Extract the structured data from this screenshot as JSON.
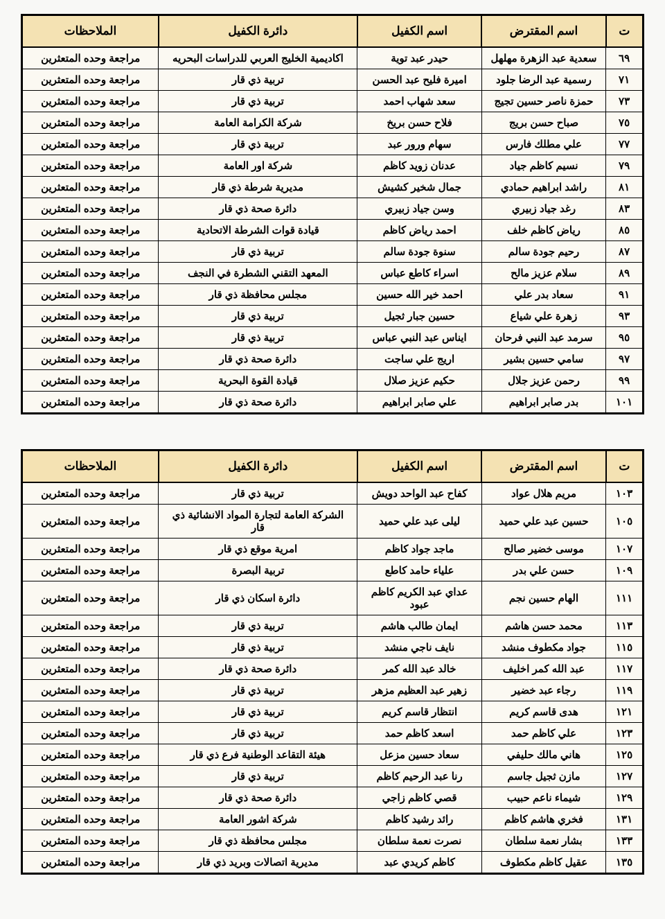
{
  "headers": {
    "seq": "ت",
    "borrower": "اسم المقترض",
    "guarantor": "اسم الكفيل",
    "department": "دائرة الكفيل",
    "notes": "الملاحظات"
  },
  "common_note": "مراجعة وحده المتعثرين",
  "table1": [
    {
      "seq": "٦٩",
      "borrower": "سعدية عبد الزهرة مهلهل",
      "guarantor": "حيدر عبد توية",
      "dept": "اكاديمية الخليج العربي للدراسات البحريه"
    },
    {
      "seq": "٧١",
      "borrower": "رسمية عبد الرضا جلود",
      "guarantor": "اميرة فليح عبد الحسن",
      "dept": "تربية ذي قار"
    },
    {
      "seq": "٧٣",
      "borrower": "حمزة ناصر حسين تجيج",
      "guarantor": "سعد شهاب احمد",
      "dept": "تربية ذي قار"
    },
    {
      "seq": "٧٥",
      "borrower": "صباح حسن بريج",
      "guarantor": "فلاح حسن بريخ",
      "dept": "شركة الكرامة العامة"
    },
    {
      "seq": "٧٧",
      "borrower": "علي مطلك فارس",
      "guarantor": "سهام ورور عبد",
      "dept": "تربية ذي قار"
    },
    {
      "seq": "٧٩",
      "borrower": "نسيم كاظم جياد",
      "guarantor": "عدنان زويد كاظم",
      "dept": "شركة اور العامة"
    },
    {
      "seq": "٨١",
      "borrower": "راشد ابراهيم حمادي",
      "guarantor": "جمال شخير كشيش",
      "dept": "مديرية شرطة ذي قار"
    },
    {
      "seq": "٨٣",
      "borrower": "رغد جياد زبيري",
      "guarantor": "وسن جياد زبيري",
      "dept": "دائرة صحة ذي قار"
    },
    {
      "seq": "٨٥",
      "borrower": "رياض كاظم خلف",
      "guarantor": "احمد رياض كاظم",
      "dept": "قيادة قوات الشرطة الاتحادية"
    },
    {
      "seq": "٨٧",
      "borrower": "رحيم جودة سالم",
      "guarantor": "سنوة جودة سالم",
      "dept": "تربية ذي قار"
    },
    {
      "seq": "٨٩",
      "borrower": "سلام عزيز مالح",
      "guarantor": "اسراء كاطع عباس",
      "dept": "المعهد التقني الشطرة في النجف"
    },
    {
      "seq": "٩١",
      "borrower": "سعاد بدر علي",
      "guarantor": "احمد خير الله حسين",
      "dept": "مجلس محافظة ذي قار"
    },
    {
      "seq": "٩٣",
      "borrower": "زهرة علي شياع",
      "guarantor": "حسين جبار ثجيل",
      "dept": "تربية ذي قار"
    },
    {
      "seq": "٩٥",
      "borrower": "سرمد عبد النبي فرحان",
      "guarantor": "ايناس عبد النبي عباس",
      "dept": "تربية ذي قار"
    },
    {
      "seq": "٩٧",
      "borrower": "سامي حسين بشير",
      "guarantor": "اريج علي ساجت",
      "dept": "دائرة صحة ذي قار"
    },
    {
      "seq": "٩٩",
      "borrower": "رحمن عزيز جلال",
      "guarantor": "حكيم عزيز صلال",
      "dept": "قيادة القوة البحرية"
    },
    {
      "seq": "١٠١",
      "borrower": "بدر صابر ابراهيم",
      "guarantor": "علي صابر ابراهيم",
      "dept": "دائرة صحة ذي قار"
    }
  ],
  "table2": [
    {
      "seq": "١٠٣",
      "borrower": "مريم هلال عواد",
      "guarantor": "كفاح عبد الواحد دويش",
      "dept": "تربية ذي قار"
    },
    {
      "seq": "١٠٥",
      "borrower": "حسين عبد علي حميد",
      "guarantor": "ليلى عبد علي حميد",
      "dept": "الشركة العامة لتجارة المواد الانشائية ذي قار"
    },
    {
      "seq": "١٠٧",
      "borrower": "موسى خضير صالح",
      "guarantor": "ماجد جواد كاظم",
      "dept": "امرية موقع ذي قار"
    },
    {
      "seq": "١٠٩",
      "borrower": "حسن علي بدر",
      "guarantor": "علياء حامد كاطع",
      "dept": "تربية البصرة"
    },
    {
      "seq": "١١١",
      "borrower": "الهام حسين نجم",
      "guarantor": "عداي عبد الكريم كاظم عبود",
      "dept": "دائرة اسكان ذي قار"
    },
    {
      "seq": "١١٣",
      "borrower": "محمد حسن هاشم",
      "guarantor": "ايمان طالب هاشم",
      "dept": "تربية ذي قار"
    },
    {
      "seq": "١١٥",
      "borrower": "جواد مكطوف منشد",
      "guarantor": "نايف ناجي منشد",
      "dept": "تربية ذي قار"
    },
    {
      "seq": "١١٧",
      "borrower": "عبد الله كمر اخليف",
      "guarantor": "خالد عبد الله كمر",
      "dept": "دائرة صحة ذي قار"
    },
    {
      "seq": "١١٩",
      "borrower": "رجاء عبد خضير",
      "guarantor": "زهير عبد العظيم مزهر",
      "dept": "تربية ذي قار"
    },
    {
      "seq": "١٢١",
      "borrower": "هدى قاسم كريم",
      "guarantor": "انتظار قاسم كريم",
      "dept": "تربية ذي قار"
    },
    {
      "seq": "١٢٣",
      "borrower": "علي كاظم حمد",
      "guarantor": "اسعد كاظم حمد",
      "dept": "تربية ذي قار"
    },
    {
      "seq": "١٢٥",
      "borrower": "هاني مالك حليفي",
      "guarantor": "سعاد حسين مزعل",
      "dept": "هيئة التقاعد الوطنية فرع ذي قار"
    },
    {
      "seq": "١٢٧",
      "borrower": "مازن ثجيل جاسم",
      "guarantor": "رنا عبد الرحيم كاظم",
      "dept": "تربية ذي قار"
    },
    {
      "seq": "١٢٩",
      "borrower": "شيماء ناعم حبيب",
      "guarantor": "قصي كاظم زاجي",
      "dept": "دائرة صحة ذي قار"
    },
    {
      "seq": "١٣١",
      "borrower": "فخري هاشم كاظم",
      "guarantor": "رائد رشيد كاظم",
      "dept": "شركة اشور العامة"
    },
    {
      "seq": "١٣٣",
      "borrower": "بشار نعمة سلطان",
      "guarantor": "نصرت نعمة سلطان",
      "dept": "مجلس محافظة ذي قار"
    },
    {
      "seq": "١٣٥",
      "borrower": "عقيل كاظم مكطوف",
      "guarantor": "كاظم كريدي عبد",
      "dept": "مديرية اتصالات وبريد ذي قار"
    }
  ]
}
